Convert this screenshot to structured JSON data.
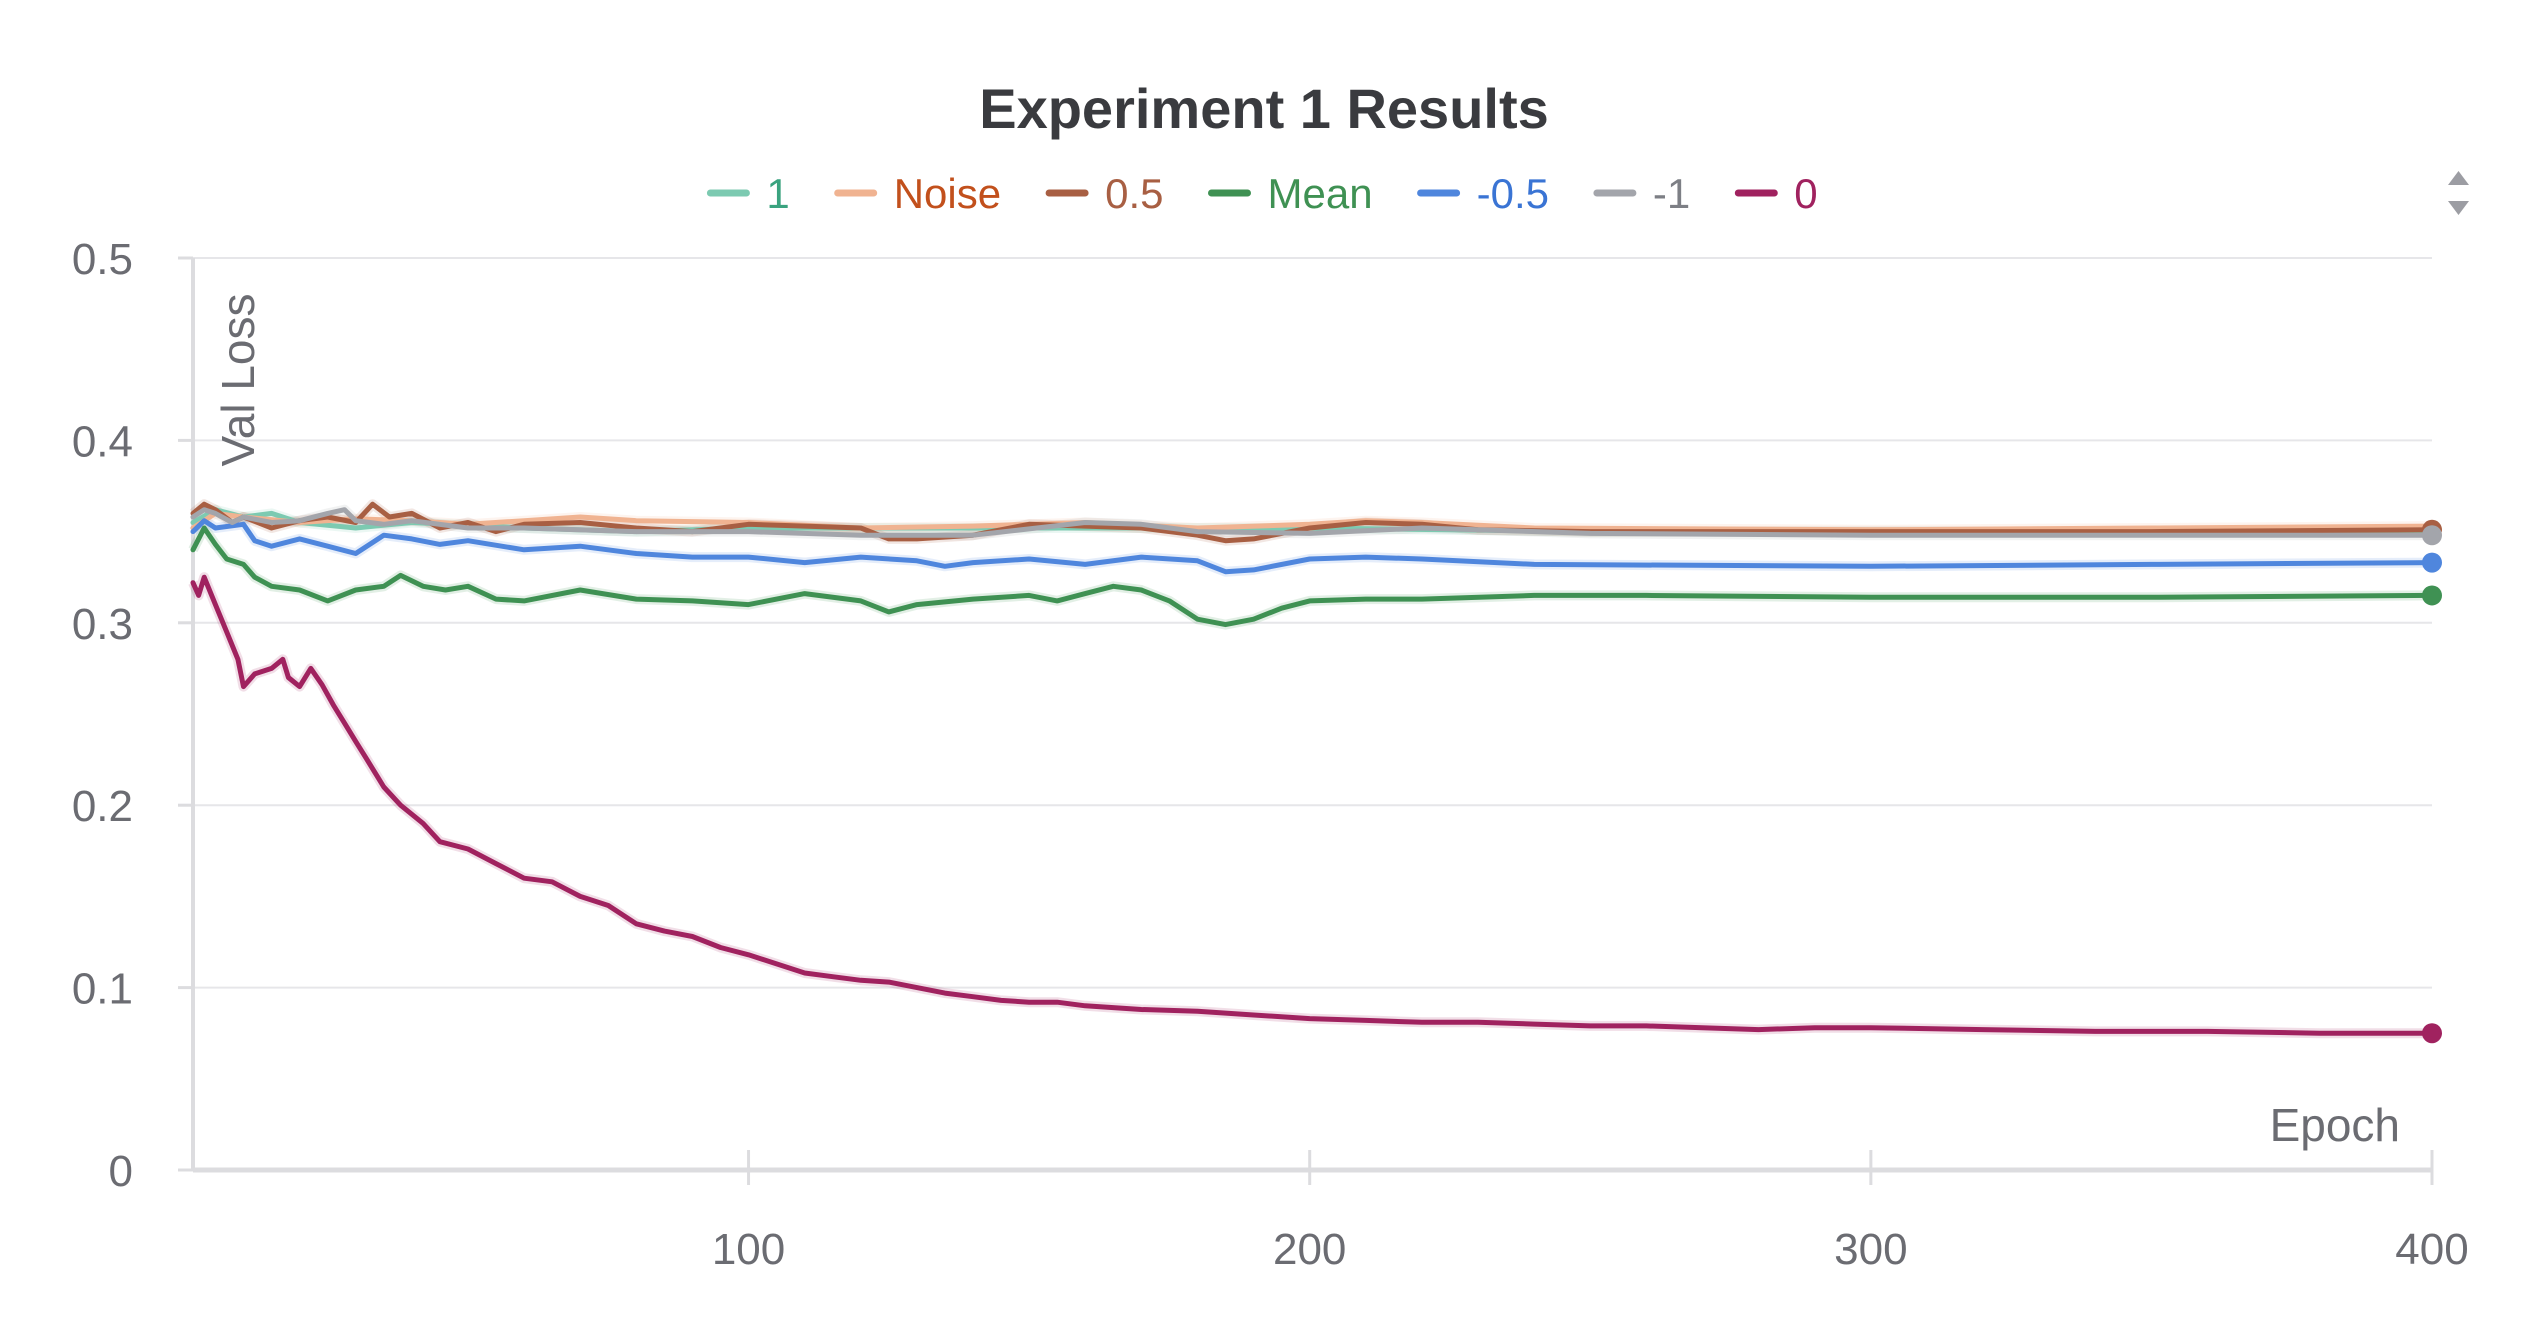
{
  "chart_data": {
    "type": "line",
    "title": "Experiment 1 Results",
    "xlabel": "Epoch",
    "ylabel": "Val Loss",
    "xlim": [
      1,
      400
    ],
    "ylim": [
      0,
      0.5
    ],
    "x_ticks": [
      100,
      200,
      300,
      400
    ],
    "y_ticks": [
      0,
      0.1,
      0.2,
      0.3,
      0.4,
      0.5
    ],
    "y_tick_labels": [
      "0",
      "0.1",
      "0.2",
      "0.3",
      "0.4",
      "0.5"
    ],
    "grid": true,
    "legend_position": "top-center",
    "series": [
      {
        "name": "1",
        "color": "#7ccab1",
        "label_color": "#3aa37f",
        "end_marker": false,
        "points": [
          [
            1,
            0.355
          ],
          [
            5,
            0.362
          ],
          [
            10,
            0.358
          ],
          [
            15,
            0.36
          ],
          [
            20,
            0.355
          ],
          [
            30,
            0.352
          ],
          [
            40,
            0.355
          ],
          [
            60,
            0.352
          ],
          [
            80,
            0.35
          ],
          [
            100,
            0.352
          ],
          [
            150,
            0.352
          ],
          [
            200,
            0.352
          ],
          [
            250,
            0.35
          ],
          [
            300,
            0.35
          ],
          [
            350,
            0.35
          ],
          [
            400,
            0.35
          ]
        ]
      },
      {
        "name": "Noise",
        "color": "#f0b391",
        "label_color": "#c2501c",
        "end_marker": false,
        "points": [
          [
            1,
            0.352
          ],
          [
            5,
            0.36
          ],
          [
            10,
            0.358
          ],
          [
            20,
            0.355
          ],
          [
            30,
            0.357
          ],
          [
            40,
            0.356
          ],
          [
            50,
            0.354
          ],
          [
            60,
            0.356
          ],
          [
            70,
            0.358
          ],
          [
            80,
            0.356
          ],
          [
            100,
            0.355
          ],
          [
            120,
            0.352
          ],
          [
            140,
            0.353
          ],
          [
            160,
            0.355
          ],
          [
            180,
            0.352
          ],
          [
            200,
            0.354
          ],
          [
            210,
            0.356
          ],
          [
            220,
            0.355
          ],
          [
            240,
            0.352
          ],
          [
            300,
            0.351
          ],
          [
            350,
            0.352
          ],
          [
            400,
            0.353
          ]
        ]
      },
      {
        "name": "0.5",
        "color": "#a85f43",
        "label_color": "#a85f43",
        "end_marker": true,
        "points": [
          [
            1,
            0.36
          ],
          [
            3,
            0.365
          ],
          [
            5,
            0.362
          ],
          [
            8,
            0.355
          ],
          [
            10,
            0.358
          ],
          [
            15,
            0.352
          ],
          [
            20,
            0.356
          ],
          [
            25,
            0.358
          ],
          [
            30,
            0.355
          ],
          [
            33,
            0.365
          ],
          [
            36,
            0.358
          ],
          [
            40,
            0.36
          ],
          [
            45,
            0.352
          ],
          [
            50,
            0.355
          ],
          [
            55,
            0.35
          ],
          [
            60,
            0.354
          ],
          [
            70,
            0.355
          ],
          [
            80,
            0.352
          ],
          [
            90,
            0.35
          ],
          [
            100,
            0.354
          ],
          [
            110,
            0.353
          ],
          [
            120,
            0.352
          ],
          [
            125,
            0.346
          ],
          [
            130,
            0.346
          ],
          [
            140,
            0.348
          ],
          [
            150,
            0.354
          ],
          [
            160,
            0.353
          ],
          [
            170,
            0.352
          ],
          [
            180,
            0.348
          ],
          [
            185,
            0.345
          ],
          [
            190,
            0.346
          ],
          [
            200,
            0.352
          ],
          [
            210,
            0.355
          ],
          [
            220,
            0.354
          ],
          [
            230,
            0.351
          ],
          [
            250,
            0.35
          ],
          [
            300,
            0.35
          ],
          [
            350,
            0.35
          ],
          [
            400,
            0.351
          ]
        ]
      },
      {
        "name": "Mean",
        "color": "#3f9153",
        "label_color": "#3f9153",
        "end_marker": true,
        "points": [
          [
            1,
            0.34
          ],
          [
            3,
            0.352
          ],
          [
            5,
            0.343
          ],
          [
            7,
            0.335
          ],
          [
            10,
            0.332
          ],
          [
            12,
            0.325
          ],
          [
            15,
            0.32
          ],
          [
            20,
            0.318
          ],
          [
            25,
            0.312
          ],
          [
            30,
            0.318
          ],
          [
            35,
            0.32
          ],
          [
            38,
            0.326
          ],
          [
            42,
            0.32
          ],
          [
            46,
            0.318
          ],
          [
            50,
            0.32
          ],
          [
            55,
            0.313
          ],
          [
            60,
            0.312
          ],
          [
            70,
            0.318
          ],
          [
            80,
            0.313
          ],
          [
            90,
            0.312
          ],
          [
            100,
            0.31
          ],
          [
            110,
            0.316
          ],
          [
            120,
            0.312
          ],
          [
            125,
            0.306
          ],
          [
            130,
            0.31
          ],
          [
            140,
            0.313
          ],
          [
            150,
            0.315
          ],
          [
            155,
            0.312
          ],
          [
            160,
            0.316
          ],
          [
            165,
            0.32
          ],
          [
            170,
            0.318
          ],
          [
            175,
            0.312
          ],
          [
            180,
            0.302
          ],
          [
            185,
            0.299
          ],
          [
            190,
            0.302
          ],
          [
            195,
            0.308
          ],
          [
            200,
            0.312
          ],
          [
            210,
            0.313
          ],
          [
            220,
            0.313
          ],
          [
            240,
            0.315
          ],
          [
            260,
            0.315
          ],
          [
            300,
            0.314
          ],
          [
            350,
            0.314
          ],
          [
            400,
            0.315
          ]
        ]
      },
      {
        "name": "-0.5",
        "color": "#4f86dd",
        "label_color": "#3a74d4",
        "end_marker": true,
        "points": [
          [
            1,
            0.35
          ],
          [
            3,
            0.356
          ],
          [
            5,
            0.352
          ],
          [
            10,
            0.354
          ],
          [
            12,
            0.345
          ],
          [
            15,
            0.342
          ],
          [
            20,
            0.346
          ],
          [
            25,
            0.342
          ],
          [
            30,
            0.338
          ],
          [
            35,
            0.348
          ],
          [
            40,
            0.346
          ],
          [
            45,
            0.343
          ],
          [
            50,
            0.345
          ],
          [
            60,
            0.34
          ],
          [
            70,
            0.342
          ],
          [
            80,
            0.338
          ],
          [
            90,
            0.336
          ],
          [
            100,
            0.336
          ],
          [
            110,
            0.333
          ],
          [
            120,
            0.336
          ],
          [
            130,
            0.334
          ],
          [
            135,
            0.331
          ],
          [
            140,
            0.333
          ],
          [
            150,
            0.335
          ],
          [
            160,
            0.332
          ],
          [
            170,
            0.336
          ],
          [
            180,
            0.334
          ],
          [
            185,
            0.328
          ],
          [
            190,
            0.329
          ],
          [
            200,
            0.335
          ],
          [
            210,
            0.336
          ],
          [
            220,
            0.335
          ],
          [
            240,
            0.332
          ],
          [
            300,
            0.331
          ],
          [
            350,
            0.332
          ],
          [
            400,
            0.333
          ]
        ]
      },
      {
        "name": "-1",
        "color": "#a3a5ab",
        "label_color": "#7d7f85",
        "end_marker": true,
        "points": [
          [
            1,
            0.358
          ],
          [
            3,
            0.362
          ],
          [
            5,
            0.36
          ],
          [
            8,
            0.355
          ],
          [
            10,
            0.358
          ],
          [
            15,
            0.355
          ],
          [
            20,
            0.356
          ],
          [
            25,
            0.36
          ],
          [
            28,
            0.362
          ],
          [
            30,
            0.356
          ],
          [
            35,
            0.354
          ],
          [
            40,
            0.356
          ],
          [
            50,
            0.352
          ],
          [
            60,
            0.352
          ],
          [
            80,
            0.35
          ],
          [
            100,
            0.35
          ],
          [
            120,
            0.348
          ],
          [
            140,
            0.348
          ],
          [
            160,
            0.355
          ],
          [
            170,
            0.354
          ],
          [
            180,
            0.35
          ],
          [
            200,
            0.349
          ],
          [
            220,
            0.352
          ],
          [
            250,
            0.349
          ],
          [
            300,
            0.348
          ],
          [
            350,
            0.348
          ],
          [
            400,
            0.348
          ]
        ]
      },
      {
        "name": "0",
        "color": "#a0225f",
        "label_color": "#a0225f",
        "end_marker": true,
        "points": [
          [
            1,
            0.322
          ],
          [
            2,
            0.315
          ],
          [
            3,
            0.325
          ],
          [
            5,
            0.31
          ],
          [
            7,
            0.295
          ],
          [
            9,
            0.28
          ],
          [
            10,
            0.265
          ],
          [
            12,
            0.272
          ],
          [
            15,
            0.275
          ],
          [
            17,
            0.28
          ],
          [
            18,
            0.27
          ],
          [
            20,
            0.265
          ],
          [
            22,
            0.275
          ],
          [
            24,
            0.266
          ],
          [
            26,
            0.255
          ],
          [
            28,
            0.245
          ],
          [
            30,
            0.235
          ],
          [
            32,
            0.225
          ],
          [
            35,
            0.21
          ],
          [
            38,
            0.2
          ],
          [
            42,
            0.19
          ],
          [
            45,
            0.18
          ],
          [
            50,
            0.176
          ],
          [
            55,
            0.168
          ],
          [
            60,
            0.16
          ],
          [
            65,
            0.158
          ],
          [
            70,
            0.15
          ],
          [
            75,
            0.145
          ],
          [
            80,
            0.135
          ],
          [
            85,
            0.131
          ],
          [
            90,
            0.128
          ],
          [
            95,
            0.122
          ],
          [
            100,
            0.118
          ],
          [
            105,
            0.113
          ],
          [
            110,
            0.108
          ],
          [
            115,
            0.106
          ],
          [
            120,
            0.104
          ],
          [
            125,
            0.103
          ],
          [
            130,
            0.1
          ],
          [
            135,
            0.097
          ],
          [
            140,
            0.095
          ],
          [
            145,
            0.093
          ],
          [
            150,
            0.092
          ],
          [
            155,
            0.092
          ],
          [
            160,
            0.09
          ],
          [
            170,
            0.088
          ],
          [
            180,
            0.087
          ],
          [
            190,
            0.085
          ],
          [
            200,
            0.083
          ],
          [
            210,
            0.082
          ],
          [
            220,
            0.081
          ],
          [
            230,
            0.081
          ],
          [
            240,
            0.08
          ],
          [
            250,
            0.079
          ],
          [
            260,
            0.079
          ],
          [
            270,
            0.078
          ],
          [
            280,
            0.077
          ],
          [
            290,
            0.078
          ],
          [
            300,
            0.078
          ],
          [
            320,
            0.077
          ],
          [
            340,
            0.076
          ],
          [
            360,
            0.076
          ],
          [
            380,
            0.075
          ],
          [
            400,
            0.075
          ]
        ]
      }
    ]
  },
  "toolbar": {
    "scroll_icon": "up-down-arrows-icon"
  }
}
